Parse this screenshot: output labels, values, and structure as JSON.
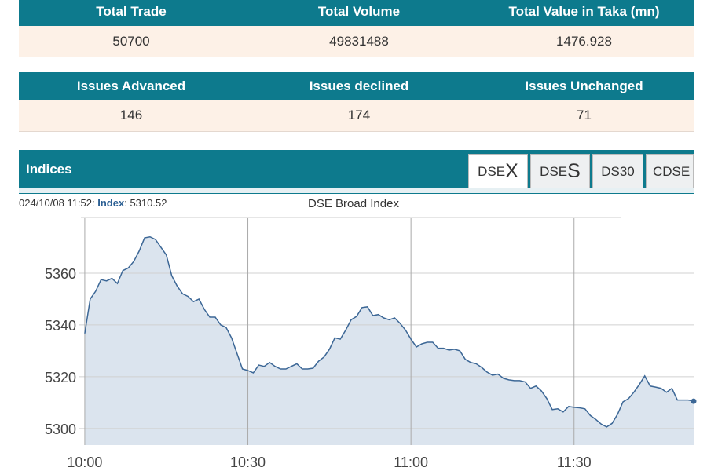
{
  "summary": {
    "headers": [
      "Total Trade",
      "Total Volume",
      "Total Value in Taka (mn)"
    ],
    "values": [
      "50700",
      "49831488",
      "1476.928"
    ]
  },
  "issues": {
    "headers": [
      "Issues Advanced",
      "Issues declined",
      "Issues Unchanged"
    ],
    "values": [
      "146",
      "174",
      "71"
    ]
  },
  "indices": {
    "title": "Indices",
    "tabs": [
      {
        "prefix": "DSE",
        "suffix": "X"
      },
      {
        "prefix": "DSE",
        "suffix": "S"
      },
      {
        "label": "DS30"
      },
      {
        "label": "CDSE"
      }
    ]
  },
  "status": {
    "time": "024/10/08 11:52:",
    "label": "Index",
    "value": ": 5310.52"
  },
  "chart_data": {
    "type": "line",
    "title": "DSE Broad Index",
    "color": "#3c6796",
    "fill": "#dbe4ee",
    "grid": true,
    "x": [
      "10:00",
      "10:01",
      "10:02",
      "10:03",
      "10:04",
      "10:05",
      "10:06",
      "10:07",
      "10:08",
      "10:09",
      "10:10",
      "10:11",
      "10:12",
      "10:13",
      "10:14",
      "10:15",
      "10:16",
      "10:17",
      "10:18",
      "10:19",
      "10:20",
      "10:21",
      "10:22",
      "10:23",
      "10:24",
      "10:25",
      "10:26",
      "10:27",
      "10:28",
      "10:29",
      "10:30",
      "10:31",
      "10:32",
      "10:33",
      "10:34",
      "10:35",
      "10:36",
      "10:37",
      "10:38",
      "10:39",
      "10:40",
      "10:41",
      "10:42",
      "10:43",
      "10:44",
      "10:45",
      "10:46",
      "10:47",
      "10:48",
      "10:49",
      "10:50",
      "10:51",
      "10:52",
      "10:53",
      "10:54",
      "10:55",
      "10:56",
      "10:57",
      "10:58",
      "10:59",
      "11:00",
      "11:01",
      "11:02",
      "11:03",
      "11:04",
      "11:05",
      "11:06",
      "11:07",
      "11:08",
      "11:09",
      "11:10",
      "11:11",
      "11:12",
      "11:13",
      "11:14",
      "11:15",
      "11:16",
      "11:17",
      "11:18",
      "11:19",
      "11:20",
      "11:21",
      "11:22",
      "11:23",
      "11:24",
      "11:25",
      "11:26",
      "11:27",
      "11:28",
      "11:29",
      "11:30",
      "11:31",
      "11:32",
      "11:33",
      "11:34",
      "11:35",
      "11:36",
      "11:37",
      "11:38",
      "11:39",
      "11:40",
      "11:41",
      "11:42",
      "11:43",
      "11:44",
      "11:45",
      "11:46",
      "11:47",
      "11:48",
      "11:49",
      "11:50",
      "11:51",
      "11:52"
    ],
    "values": [
      5336.7,
      5350,
      5353,
      5357.5,
      5357,
      5358,
      5356,
      5361,
      5362,
      5364.5,
      5368.5,
      5373.6,
      5374,
      5373,
      5370,
      5367,
      5359,
      5355,
      5352,
      5351,
      5349,
      5350,
      5346,
      5343,
      5343,
      5340,
      5339,
      5335,
      5329,
      5323,
      5322.4,
      5321.5,
      5324.5,
      5324,
      5325.5,
      5324,
      5323,
      5323,
      5324,
      5325,
      5323,
      5323,
      5323.3,
      5326,
      5327.6,
      5330.6,
      5335,
      5334.5,
      5338,
      5342,
      5343.3,
      5346.7,
      5347,
      5343.6,
      5344,
      5342.7,
      5342,
      5342.7,
      5340.6,
      5338,
      5334.5,
      5331.5,
      5332.7,
      5333.3,
      5333.3,
      5331,
      5331,
      5330.3,
      5330.6,
      5330,
      5326.7,
      5325.5,
      5325,
      5323.6,
      5321.8,
      5320.6,
      5321,
      5319.4,
      5318.8,
      5318.5,
      5318.5,
      5318,
      5315.5,
      5316.4,
      5314.5,
      5311.5,
      5307.3,
      5307.6,
      5306.4,
      5308.5,
      5308.2,
      5308,
      5307.6,
      5305,
      5303.5,
      5301.7,
      5300.6,
      5302,
      5305.5,
      5310.3,
      5311.5,
      5314,
      5317,
      5320.3,
      5316.4,
      5316,
      5315.5,
      5314,
      5315.5,
      5311,
      5311,
      5311,
      5310.52
    ],
    "xlim": [
      "09:59",
      "11:52"
    ],
    "xticks": [
      "10:00",
      "10:30",
      "11:00",
      "11:30"
    ],
    "ylim": [
      5293.6,
      5381.2
    ],
    "yticks": [
      5300,
      5320,
      5340,
      5360
    ]
  }
}
